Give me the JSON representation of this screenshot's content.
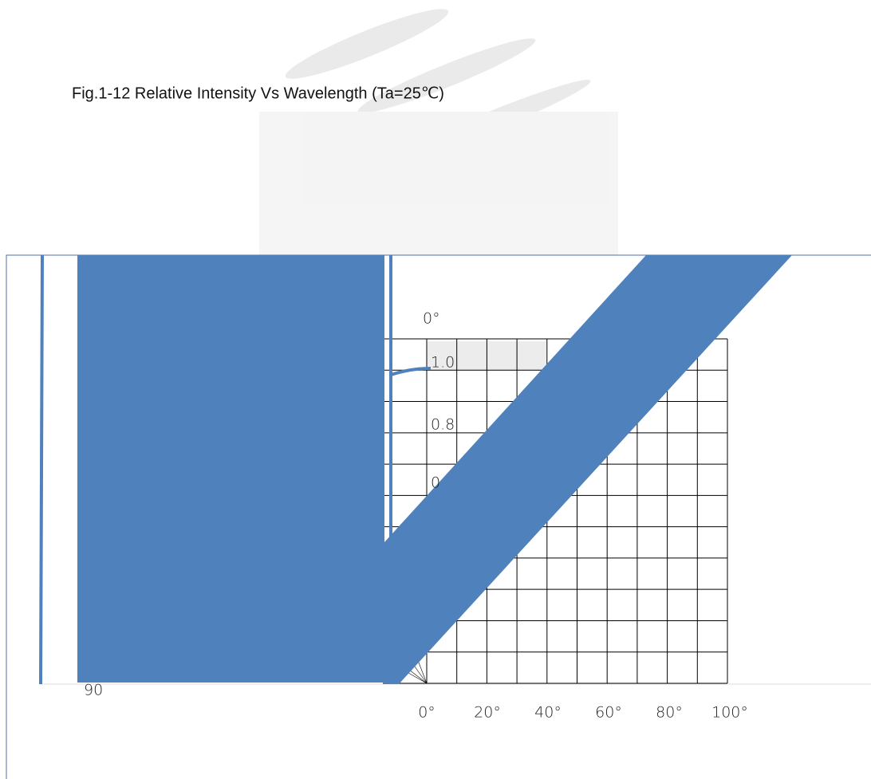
{
  "title": "Fig.1-12 Relative Intensity Vs Wavelength (Ta=25℃)",
  "top_angle_label": "0°",
  "radial_labels": [
    "1.0",
    "0.8",
    "0"
  ],
  "x_labels": [
    "0°",
    "20°",
    "40°",
    "60°",
    "80°",
    "100°"
  ],
  "corner_label": "90"
}
